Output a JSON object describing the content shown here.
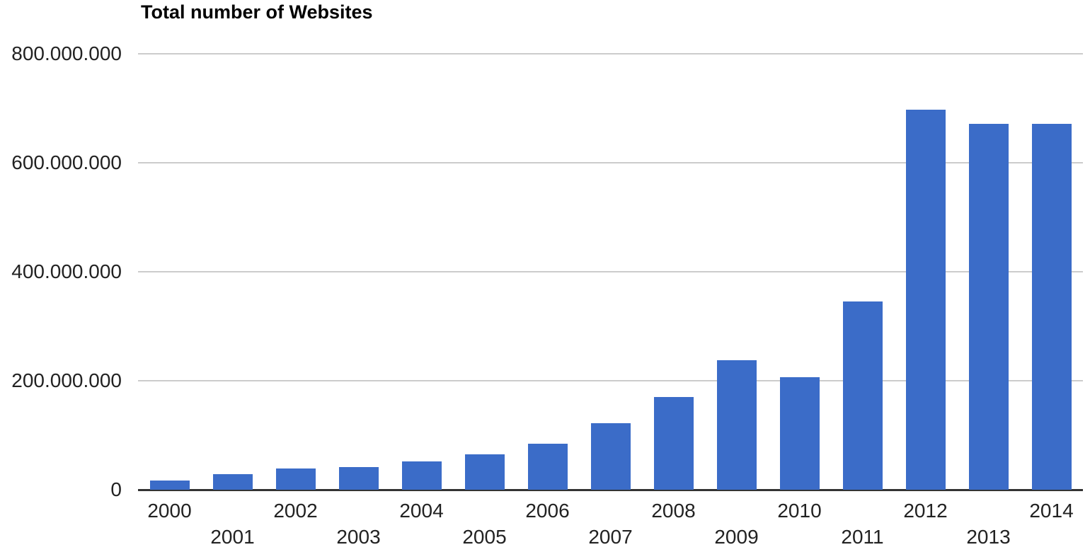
{
  "chart_data": {
    "type": "bar",
    "title": "Total number of Websites",
    "xlabel": "",
    "ylabel": "",
    "categories": [
      "2000",
      "2001",
      "2002",
      "2003",
      "2004",
      "2005",
      "2006",
      "2007",
      "2008",
      "2009",
      "2010",
      "2011",
      "2012",
      "2013",
      "2014"
    ],
    "values": [
      17000000,
      29000000,
      39000000,
      41000000,
      52000000,
      65000000,
      85000000,
      122000000,
      170000000,
      238000000,
      207000000,
      345000000,
      697000000,
      672000000,
      672000000
    ],
    "ylim": [
      0,
      800000000
    ],
    "y_ticks": [
      {
        "label": "800.000.000",
        "value": 800000000
      },
      {
        "label": "600.000.000",
        "value": 600000000
      },
      {
        "label": "400.000.000",
        "value": 400000000
      },
      {
        "label": "200.000.000",
        "value": 200000000
      },
      {
        "label": "0",
        "value": 0
      }
    ],
    "grid": true,
    "legend_position": "none",
    "x_label_layout": "staggered-two-rows",
    "colors": {
      "bar": "#3b6cc8",
      "gridline": "#cccccc",
      "axis_line": "#333333",
      "tick_text": "#222222",
      "title_text": "#000000",
      "background": "#ffffff"
    }
  }
}
